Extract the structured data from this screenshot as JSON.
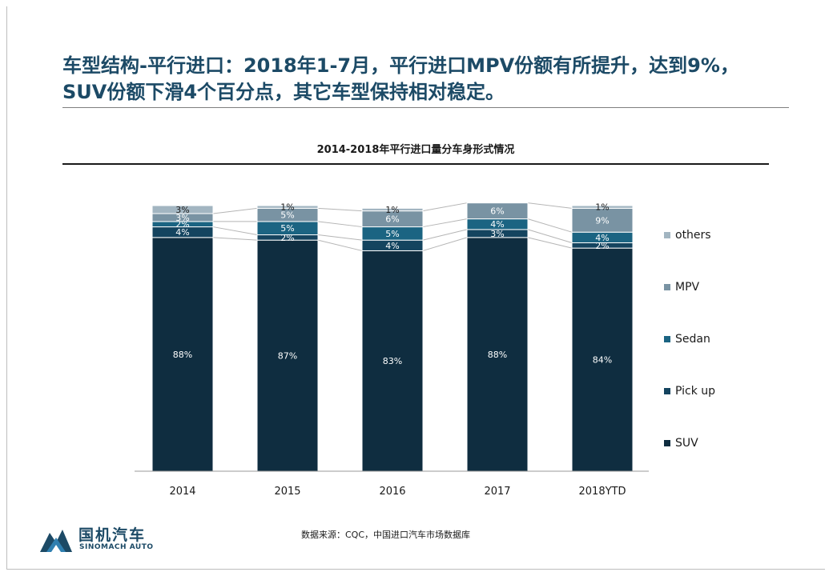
{
  "headline": {
    "line1": "车型结构-平行进口：2018年1-7月，平行进口MPV份额有所提升，达到9%，",
    "line2": "SUV份额下滑4个百分点，其它车型保持相对稳定。"
  },
  "chart_data": {
    "type": "bar",
    "stacked": true,
    "percent_stacked": true,
    "title": "2014-2018年平行进口量分车身形式情况",
    "categories": [
      "2014",
      "2015",
      "2016",
      "2017",
      "2018YTD"
    ],
    "series": [
      {
        "name": "SUV",
        "color": "#0f2d40",
        "values": [
          88,
          87,
          83,
          88,
          84
        ],
        "labels": [
          "88%",
          "87%",
          "83%",
          "88%",
          "84%"
        ]
      },
      {
        "name": "Pick up",
        "color": "#14445f",
        "values": [
          4,
          2,
          4,
          3,
          2
        ],
        "labels": [
          "4%",
          "2%",
          "4%",
          "3%",
          "2%"
        ]
      },
      {
        "name": "Sedan",
        "color": "#1b6482",
        "values": [
          2,
          5,
          5,
          4,
          4
        ],
        "labels": [
          "2%",
          "5%",
          "5%",
          "4%",
          "4%"
        ]
      },
      {
        "name": "MPV",
        "color": "#7993a3",
        "values": [
          3,
          5,
          6,
          6,
          9
        ],
        "labels": [
          "3%",
          "5%",
          "6%",
          "6%",
          "9%"
        ]
      },
      {
        "name": "others",
        "color": "#a2b5c1",
        "values": [
          3,
          1,
          1,
          0,
          1
        ],
        "labels": [
          "3%",
          "1%",
          "1%",
          "",
          "1%"
        ]
      }
    ],
    "ylim": [
      0,
      100
    ],
    "grid": false,
    "legend": "right",
    "connector_lines": true
  },
  "footer": {
    "source": "数据来源：CQC，中国进口汽车市场数据库",
    "logo_cn": "国机汽车",
    "logo_en": "SINOMACH AUTO",
    "logo_icon": "mountain-logo-icon",
    "brand_color": "#1c4a66"
  }
}
